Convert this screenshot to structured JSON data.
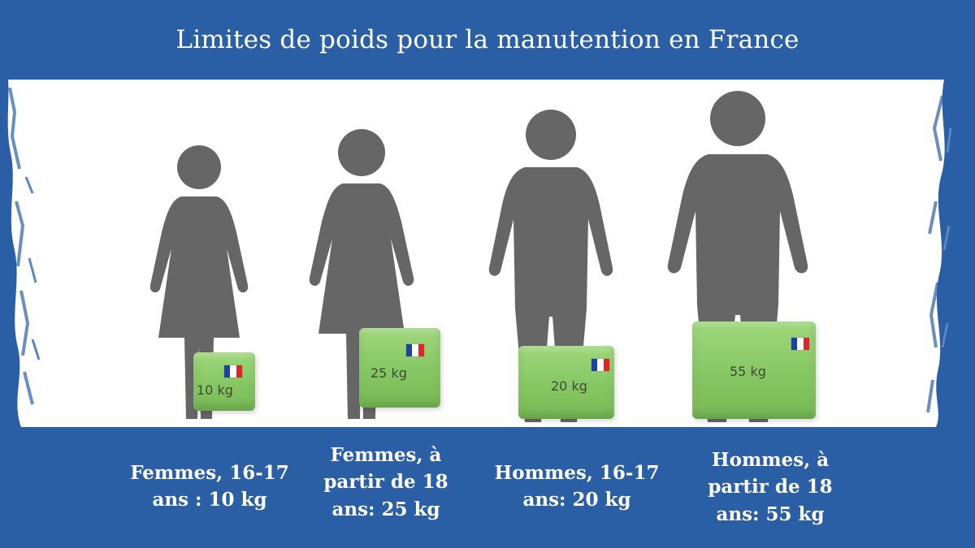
{
  "title": "Limites de poids pour la manutention en France",
  "colors": {
    "band_blue": "#2a5fa6",
    "figure_gray": "#666666",
    "box_green": "#86c763"
  },
  "groups": [
    {
      "figure_icon": "woman-icon",
      "caption_lines": [
        "Femmes, 16-17",
        "ans : 10 kg"
      ],
      "box_label": "10 kg",
      "limit_kg": 10
    },
    {
      "figure_icon": "woman-icon",
      "caption_lines": [
        "Femmes, à",
        "partir de 18",
        "ans: 25 kg"
      ],
      "box_label": "25 kg",
      "limit_kg": 25
    },
    {
      "figure_icon": "man-icon",
      "caption_lines": [
        "Hommes, 16-17",
        "ans: 20 kg"
      ],
      "box_label": "20 kg",
      "limit_kg": 20
    },
    {
      "figure_icon": "man-icon",
      "caption_lines": [
        "Hommes, à",
        "partir de 18",
        "ans: 55 kg"
      ],
      "box_label": "55 kg",
      "limit_kg": 55
    }
  ]
}
